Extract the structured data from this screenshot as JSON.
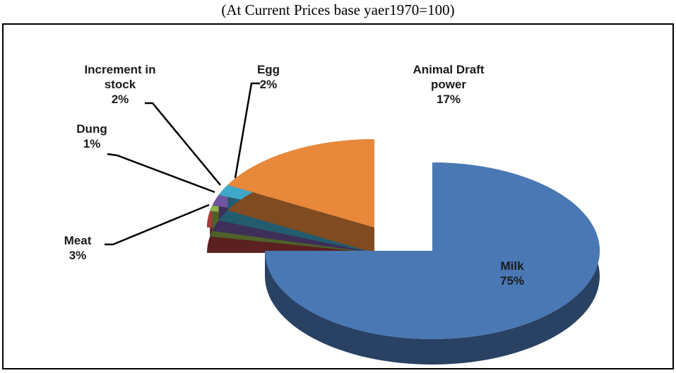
{
  "chart_data": {
    "type": "pie",
    "title": "(At Current Prices base yaer1970=100)",
    "categories": [
      "Milk",
      "Meat",
      "Dung",
      "Increment in stock",
      "Egg",
      "Animal Draft power"
    ],
    "values": [
      75,
      3,
      1,
      2,
      2,
      17
    ],
    "value_labels": [
      "75%",
      "3%",
      "1%",
      "2%",
      "2%",
      "17%"
    ],
    "colors": [
      "#4a78b5",
      "#a63a3a",
      "#8db04a",
      "#6f55a0",
      "#3fa8c8",
      "#e8883a"
    ]
  }
}
